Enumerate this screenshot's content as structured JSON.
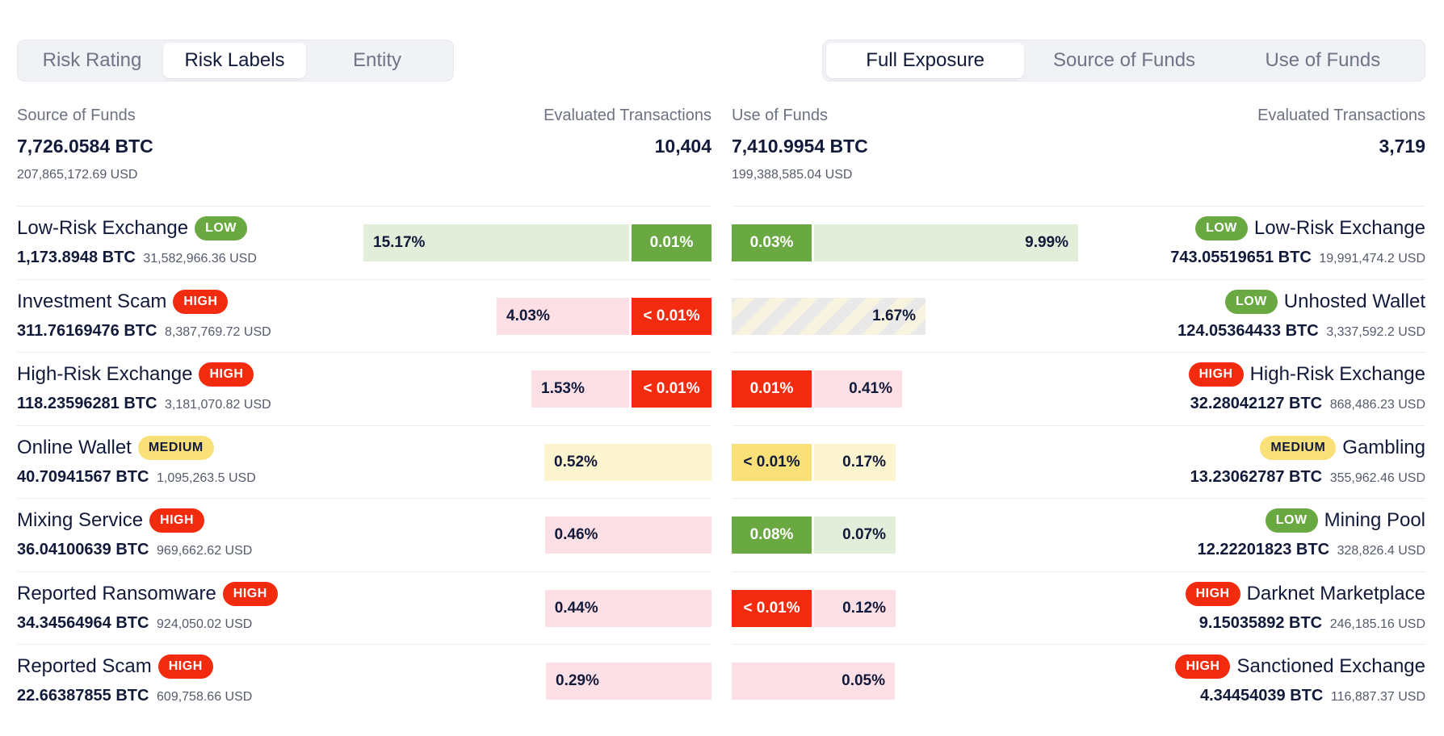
{
  "colors": {
    "high_strong": "#f22b0e",
    "high_light": "#fddfe6",
    "low_strong": "#6aa842",
    "low_light": "#e2eeda",
    "medium_strong": "#f9e079",
    "medium_light": "#fdf5cf"
  },
  "left_tabs": [
    {
      "label": "Risk Rating",
      "active": false
    },
    {
      "label": "Risk Labels",
      "active": true
    },
    {
      "label": "Entity",
      "active": false
    }
  ],
  "right_tabs": [
    {
      "label": "Full Exposure",
      "active": true
    },
    {
      "label": "Source of Funds",
      "active": false
    },
    {
      "label": "Use of Funds",
      "active": false
    }
  ],
  "source": {
    "label": "Source of Funds",
    "btc": "7,726.0584 BTC",
    "usd": "207,865,172.69 USD",
    "tx_label": "Evaluated Transactions",
    "tx_value": "10,404"
  },
  "use": {
    "label": "Use of Funds",
    "btc": "7,410.9954 BTC",
    "usd": "199,388,585.04 USD",
    "tx_label": "Evaluated Transactions",
    "tx_value": "3,719"
  },
  "source_rows": [
    {
      "name": "Low-Risk Exchange",
      "risk": "LOW",
      "btc": "1,173.8948 BTC",
      "usd": "31,582,966.36 USD",
      "indirect_pct": "15.17%",
      "indirect_value": 15.17,
      "direct_pct": "0.01%"
    },
    {
      "name": "Investment Scam",
      "risk": "HIGH",
      "btc": "311.76169476 BTC",
      "usd": "8,387,769.72 USD",
      "indirect_pct": "4.03%",
      "indirect_value": 4.03,
      "direct_pct": "< 0.01%"
    },
    {
      "name": "High-Risk Exchange",
      "risk": "HIGH",
      "btc": "118.23596281 BTC",
      "usd": "3,181,070.82 USD",
      "indirect_pct": "1.53%",
      "indirect_value": 1.53,
      "direct_pct": "< 0.01%"
    },
    {
      "name": "Online Wallet",
      "risk": "MEDIUM",
      "btc": "40.70941567 BTC",
      "usd": "1,095,263.5 USD",
      "indirect_pct": "0.52%",
      "indirect_value": 0.52,
      "direct_pct": ""
    },
    {
      "name": "Mixing Service",
      "risk": "HIGH",
      "btc": "36.04100639 BTC",
      "usd": "969,662.62 USD",
      "indirect_pct": "0.46%",
      "indirect_value": 0.46,
      "direct_pct": ""
    },
    {
      "name": "Reported Ransomware",
      "risk": "HIGH",
      "btc": "34.34564964 BTC",
      "usd": "924,050.02 USD",
      "indirect_pct": "0.44%",
      "indirect_value": 0.44,
      "direct_pct": ""
    },
    {
      "name": "Reported Scam",
      "risk": "HIGH",
      "btc": "22.66387855 BTC",
      "usd": "609,758.66 USD",
      "indirect_pct": "0.29%",
      "indirect_value": 0.29,
      "direct_pct": ""
    }
  ],
  "use_rows": [
    {
      "name": "Low-Risk Exchange",
      "risk": "LOW",
      "btc": "743.05519651 BTC",
      "usd": "19,991,474.2 USD",
      "direct_pct": "0.03%",
      "indirect_pct": "9.99%",
      "indirect_value": 9.99,
      "unrated": false
    },
    {
      "name": "Unhosted Wallet",
      "risk": "LOW",
      "btc": "124.05364433 BTC",
      "usd": "3,337,592.2 USD",
      "direct_pct": "",
      "indirect_pct": "1.67%",
      "indirect_value": 1.67,
      "unrated": true
    },
    {
      "name": "High-Risk Exchange",
      "risk": "HIGH",
      "btc": "32.28042127 BTC",
      "usd": "868,486.23 USD",
      "direct_pct": "0.01%",
      "indirect_pct": "0.41%",
      "indirect_value": 0.41,
      "unrated": false
    },
    {
      "name": "Gambling",
      "risk": "MEDIUM",
      "btc": "13.23062787 BTC",
      "usd": "355,962.46 USD",
      "direct_pct": "< 0.01%",
      "indirect_pct": "0.17%",
      "indirect_value": 0.17,
      "unrated": false
    },
    {
      "name": "Mining Pool",
      "risk": "LOW",
      "btc": "12.22201823 BTC",
      "usd": "328,826.4 USD",
      "direct_pct": "0.08%",
      "indirect_pct": "0.07%",
      "indirect_value": 0.07,
      "unrated": false
    },
    {
      "name": "Darknet Marketplace",
      "risk": "HIGH",
      "btc": "9.15035892 BTC",
      "usd": "246,185.16 USD",
      "direct_pct": "< 0.01%",
      "indirect_pct": "0.12%",
      "indirect_value": 0.12,
      "unrated": false
    },
    {
      "name": "Sanctioned Exchange",
      "risk": "HIGH",
      "btc": "4.34454039 BTC",
      "usd": "116,887.37 USD",
      "direct_pct": "",
      "indirect_pct": "0.05%",
      "indirect_value": 0.05,
      "unrated": false
    }
  ]
}
